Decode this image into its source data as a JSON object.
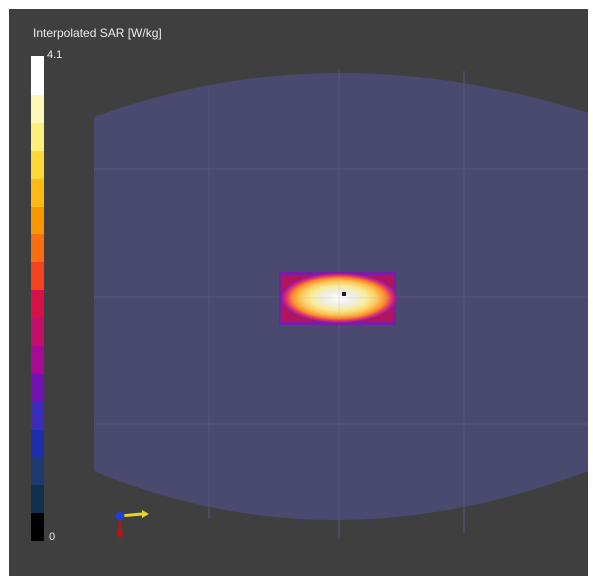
{
  "legend": {
    "title": "Interpolated SAR [W/kg]",
    "max_label": "4.1",
    "min_label": "0",
    "colors": [
      "#ffffff",
      "#fdf8b6",
      "#fcf07c",
      "#fdd735",
      "#fdb914",
      "#f99700",
      "#f86f0f",
      "#f4421e",
      "#d8104a",
      "#c0106a",
      "#a80a94",
      "#7212b2",
      "#3c2cbc",
      "#1d2eaa",
      "#1f3a73",
      "#12304d",
      "#000000"
    ]
  },
  "scene": {
    "background_color": "#3f3f3f",
    "phantom_color": "#4a4a70",
    "hotspot": {
      "peak_color": "#ffffff",
      "rim_color": "#7a1aa8"
    }
  },
  "axes_triad": {
    "x_color": "#e8d428",
    "y_color": "#b01818",
    "z_color": "#2040d0"
  }
}
